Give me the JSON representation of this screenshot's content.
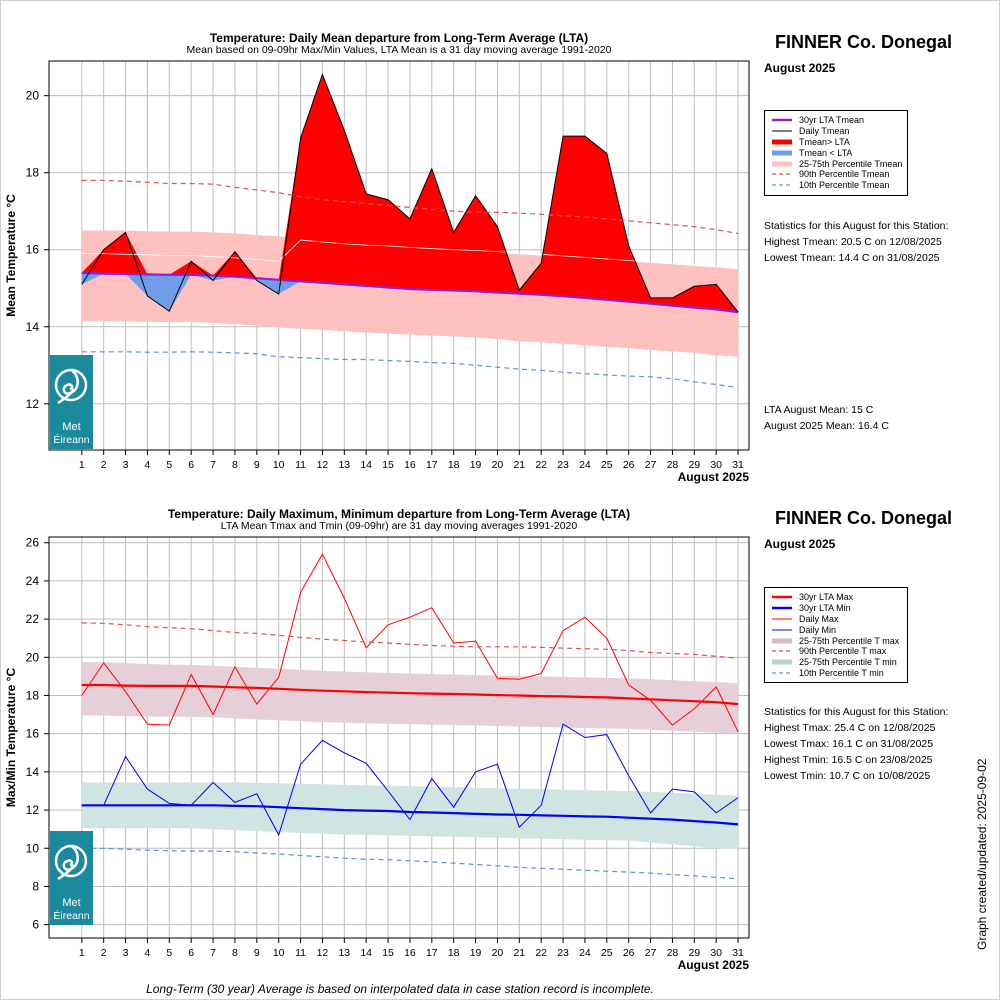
{
  "footnote": "Long-Term (30 year) Average is based on interpolated data in case station record is incomplete.",
  "created_label": "Graph created/updated:  2025-09-02",
  "chart_data": [
    {
      "type": "area",
      "title": "Temperature: Daily Mean departure from Long-Term Average (LTA)",
      "subtitle": "Mean based on 09-09hr Max/Min Values, LTA Mean is a 31 day moving average 1991-2020",
      "station": "FINNER Co. Donegal",
      "month": "August 2025",
      "xlabel": "August 2025",
      "ylabel": "Mean Temperature °C",
      "xlim": [
        -0.5,
        31.5
      ],
      "ylim": [
        10.8,
        20.9
      ],
      "y_ticks": [
        12,
        14,
        16,
        18,
        20
      ],
      "x": [
        1,
        2,
        3,
        4,
        5,
        6,
        7,
        8,
        9,
        10,
        11,
        12,
        13,
        14,
        15,
        16,
        17,
        18,
        19,
        20,
        21,
        22,
        23,
        24,
        25,
        26,
        27,
        28,
        29,
        30,
        31
      ],
      "grid": true,
      "series": [
        {
          "name": "30yr LTA Tmean",
          "color": "#9b1bc9",
          "values": [
            15.4,
            15.38,
            15.37,
            15.36,
            15.35,
            15.35,
            15.33,
            15.3,
            15.26,
            15.22,
            15.18,
            15.14,
            15.1,
            15.06,
            15.02,
            14.98,
            14.96,
            14.94,
            14.92,
            14.89,
            14.86,
            14.83,
            14.79,
            14.75,
            14.7,
            14.65,
            14.6,
            14.55,
            14.5,
            14.45,
            14.38
          ]
        },
        {
          "name": "Daily Tmean",
          "color": "#000000",
          "values": [
            15.1,
            16.0,
            16.45,
            14.8,
            14.4,
            15.7,
            15.2,
            15.95,
            15.2,
            14.85,
            18.9,
            20.55,
            19.1,
            17.45,
            17.3,
            16.8,
            18.1,
            16.45,
            17.4,
            16.6,
            14.95,
            15.65,
            18.95,
            18.95,
            18.5,
            16.1,
            14.75,
            14.75,
            15.05,
            15.1,
            14.38
          ]
        },
        {
          "name": "90th Percentile Tmean",
          "color": "#e05050",
          "values": [
            17.8,
            17.8,
            17.78,
            17.75,
            17.72,
            17.72,
            17.7,
            17.62,
            17.55,
            17.48,
            17.38,
            17.3,
            17.25,
            17.2,
            17.15,
            17.1,
            17.05,
            17.0,
            16.98,
            16.97,
            16.95,
            16.92,
            16.88,
            16.85,
            16.8,
            16.75,
            16.7,
            16.65,
            16.6,
            16.52,
            16.42
          ]
        },
        {
          "name": "10th Percentile Tmean",
          "color": "#5b8fe6",
          "values": [
            13.35,
            13.35,
            13.35,
            13.34,
            13.34,
            13.35,
            13.34,
            13.32,
            13.3,
            13.22,
            13.2,
            13.17,
            13.15,
            13.15,
            13.12,
            13.1,
            13.07,
            13.05,
            13.0,
            12.95,
            12.9,
            12.87,
            12.82,
            12.78,
            12.75,
            12.72,
            12.7,
            12.65,
            12.57,
            12.5,
            12.42
          ]
        }
      ],
      "band": {
        "name": "25-75th Percentile Tmean",
        "color": "#ffc0c0",
        "upper": [
          16.5,
          16.5,
          16.5,
          16.48,
          16.47,
          16.47,
          16.45,
          16.42,
          16.38,
          16.35,
          16.3,
          16.25,
          16.2,
          16.15,
          16.1,
          16.06,
          16.02,
          15.98,
          15.95,
          15.92,
          15.88,
          15.85,
          15.82,
          15.78,
          15.74,
          15.7,
          15.66,
          15.62,
          15.58,
          15.54,
          15.5
        ],
        "lower": [
          14.15,
          14.15,
          14.14,
          14.13,
          14.12,
          14.13,
          14.1,
          14.07,
          14.03,
          13.98,
          13.95,
          13.92,
          13.88,
          13.85,
          13.82,
          13.8,
          13.77,
          13.75,
          13.72,
          13.68,
          13.62,
          13.6,
          13.56,
          13.52,
          13.48,
          13.44,
          13.4,
          13.36,
          13.32,
          13.26,
          13.22
        ]
      },
      "inner_line": {
        "color": "#ffffff",
        "values": [
          15.9,
          15.9,
          15.88,
          15.87,
          15.85,
          15.85,
          15.82,
          15.79,
          15.75,
          15.7,
          16.25,
          16.2,
          16.15,
          16.12,
          16.1,
          16.06,
          16.03,
          16.0,
          15.98,
          15.95,
          15.92,
          15.88,
          15.84,
          15.8,
          15.76,
          15.72,
          15.68,
          15.64,
          15.6,
          15.56,
          15.52
        ]
      },
      "fill_above_color": "#ff0000",
      "fill_below_color": "#6f9de8",
      "legend": [
        {
          "label": "30yr LTA Tmean",
          "kind": "line",
          "color": "#9b1bc9",
          "width": 2.5
        },
        {
          "label": "Daily Tmean",
          "kind": "line",
          "color": "#000000",
          "width": 1
        },
        {
          "label": "Tmean> LTA",
          "kind": "line",
          "color": "#ff0000",
          "width": 5
        },
        {
          "label": "Tmean < LTA",
          "kind": "line",
          "color": "#6f9de8",
          "width": 5
        },
        {
          "label": "25-75th Percentile Tmean",
          "kind": "line",
          "color": "#ffc0c0",
          "width": 5
        },
        {
          "label": "90th Percentile Tmean",
          "kind": "dash",
          "color": "#e05050",
          "width": 1.2
        },
        {
          "label": "10th Percentile Tmean",
          "kind": "dash",
          "color": "#5b8fe6",
          "width": 1.2
        }
      ],
      "stats": [
        "Statistics for this August for this Station:",
        "Highest Tmean: 20.5 C on 12/08/2025",
        "Lowest Tmean: 14.4 C on 31/08/2025"
      ],
      "means": [
        "LTA August Mean: 15 C",
        "August 2025 Mean: 16.4 C"
      ],
      "logo_text": [
        "Met",
        "Éireann"
      ]
    },
    {
      "type": "line",
      "title": "Temperature: Daily Maximum, Minimum departure from Long-Term Average (LTA)",
      "subtitle": "LTA Mean Tmax and Tmin (09-09hr) are 31 day moving averages 1991-2020",
      "station": "FINNER Co. Donegal",
      "month": "August 2025",
      "xlabel": "August 2025",
      "ylabel": "Max/Min Temperature °C",
      "xlim": [
        -0.5,
        31.5
      ],
      "ylim": [
        5.3,
        26.3
      ],
      "y_ticks": [
        6,
        8,
        10,
        12,
        14,
        16,
        18,
        20,
        22,
        24,
        26
      ],
      "x": [
        1,
        2,
        3,
        4,
        5,
        6,
        7,
        8,
        9,
        10,
        11,
        12,
        13,
        14,
        15,
        16,
        17,
        18,
        19,
        20,
        21,
        22,
        23,
        24,
        25,
        26,
        27,
        28,
        29,
        30,
        31
      ],
      "grid": true,
      "series": [
        {
          "name": "30yr LTA Max",
          "color": "#ff0000",
          "values": [
            18.55,
            18.55,
            18.52,
            18.5,
            18.5,
            18.5,
            18.47,
            18.43,
            18.4,
            18.35,
            18.3,
            18.25,
            18.22,
            18.18,
            18.15,
            18.12,
            18.1,
            18.08,
            18.05,
            18.02,
            18.0,
            17.97,
            17.95,
            17.92,
            17.9,
            17.85,
            17.8,
            17.75,
            17.7,
            17.65,
            17.55
          ]
        },
        {
          "name": "30yr LTA Min",
          "color": "#0000ff",
          "values": [
            12.25,
            12.25,
            12.25,
            12.25,
            12.25,
            12.25,
            12.25,
            12.22,
            12.2,
            12.15,
            12.1,
            12.05,
            12.0,
            11.97,
            11.95,
            11.9,
            11.87,
            11.84,
            11.8,
            11.77,
            11.75,
            11.72,
            11.7,
            11.67,
            11.65,
            11.6,
            11.55,
            11.5,
            11.42,
            11.35,
            11.25
          ]
        },
        {
          "name": "Daily Max",
          "color": "#ff0000",
          "values": [
            18.0,
            19.7,
            18.2,
            16.5,
            16.45,
            19.1,
            17.0,
            19.5,
            17.55,
            18.95,
            23.4,
            25.4,
            23.1,
            20.5,
            21.7,
            22.1,
            22.6,
            20.75,
            20.85,
            18.9,
            18.85,
            19.15,
            21.4,
            22.1,
            21.0,
            18.55,
            17.75,
            16.45,
            17.3,
            18.45,
            16.1
          ]
        },
        {
          "name": "Daily Min",
          "color": "#0000ff",
          "values": [
            12.25,
            12.25,
            14.8,
            13.1,
            12.35,
            12.25,
            13.45,
            12.4,
            12.85,
            10.7,
            14.4,
            15.65,
            15.0,
            14.45,
            13.0,
            11.5,
            13.65,
            12.15,
            14.0,
            14.4,
            11.1,
            12.25,
            16.5,
            15.8,
            15.95,
            13.8,
            11.85,
            13.1,
            12.95,
            11.85,
            12.65
          ]
        },
        {
          "name": "90th Percentile T max",
          "color": "#e05050",
          "values": [
            21.8,
            21.78,
            21.7,
            21.6,
            21.55,
            21.5,
            21.4,
            21.3,
            21.25,
            21.15,
            21.05,
            20.95,
            20.88,
            20.8,
            20.75,
            20.68,
            20.62,
            20.58,
            20.55,
            20.55,
            20.55,
            20.52,
            20.48,
            20.45,
            20.42,
            20.35,
            20.25,
            20.2,
            20.15,
            20.05,
            19.95
          ]
        },
        {
          "name": "10th Percentile T min",
          "color": "#5b8fe6",
          "values": [
            10.0,
            10.0,
            9.95,
            9.9,
            9.87,
            9.85,
            9.85,
            9.82,
            9.75,
            9.7,
            9.62,
            9.55,
            9.48,
            9.42,
            9.4,
            9.35,
            9.28,
            9.22,
            9.15,
            9.08,
            9.0,
            8.95,
            8.9,
            8.85,
            8.8,
            8.75,
            8.7,
            8.62,
            8.55,
            8.48,
            8.4
          ]
        }
      ],
      "bands": [
        {
          "name": "25-75th Percentile T max",
          "color": "#e6cfd8",
          "upper": [
            19.75,
            19.75,
            19.7,
            19.65,
            19.62,
            19.6,
            19.55,
            19.5,
            19.45,
            19.4,
            19.35,
            19.3,
            19.25,
            19.22,
            19.18,
            19.15,
            19.12,
            19.1,
            19.07,
            19.05,
            19.02,
            19.0,
            18.97,
            18.95,
            18.92,
            18.9,
            18.85,
            18.8,
            18.75,
            18.7,
            18.65
          ],
          "lower": [
            16.95,
            16.95,
            16.92,
            16.9,
            16.9,
            16.88,
            16.85,
            16.8,
            16.75,
            16.7,
            16.65,
            16.6,
            16.57,
            16.55,
            16.52,
            16.5,
            16.47,
            16.45,
            16.43,
            16.4,
            16.38,
            16.35,
            16.32,
            16.3,
            16.27,
            16.25,
            16.2,
            16.15,
            16.1,
            16.05,
            16.0
          ]
        },
        {
          "name": "25-75th Percentile T min",
          "color": "#d0e4e1",
          "upper": [
            13.45,
            13.45,
            13.45,
            13.45,
            13.45,
            13.45,
            13.45,
            13.45,
            13.42,
            13.4,
            13.37,
            13.35,
            13.32,
            13.3,
            13.28,
            13.25,
            13.22,
            13.2,
            13.17,
            13.15,
            13.12,
            13.1,
            13.07,
            13.05,
            13.02,
            13.0,
            12.95,
            12.9,
            12.85,
            12.8,
            12.75
          ],
          "lower": [
            11.05,
            11.05,
            11.05,
            11.05,
            11.05,
            11.05,
            11.0,
            10.95,
            10.9,
            10.85,
            10.8,
            10.75,
            10.72,
            10.7,
            10.67,
            10.65,
            10.62,
            10.6,
            10.57,
            10.55,
            10.52,
            10.5,
            10.47,
            10.45,
            10.42,
            10.4,
            10.3,
            10.2,
            10.1,
            10.0,
            9.95
          ]
        }
      ],
      "legend": [
        {
          "label": "30yr LTA Max",
          "kind": "line",
          "color": "#ff0000",
          "width": 2.5
        },
        {
          "label": "30yr LTA Min",
          "kind": "line",
          "color": "#0000ff",
          "width": 2.5
        },
        {
          "label": "Daily Max",
          "kind": "line",
          "color": "#ff0000",
          "width": 1
        },
        {
          "label": "Daily Min",
          "kind": "line",
          "color": "#0000ff",
          "width": 1
        },
        {
          "label": "25-75th Percentile T max",
          "kind": "line",
          "color": "#d9b9c5",
          "width": 5
        },
        {
          "label": "90th Percentile T max",
          "kind": "dash",
          "color": "#e05050",
          "width": 1.2
        },
        {
          "label": "25-75th Percentile T min",
          "kind": "line",
          "color": "#b9d3cf",
          "width": 5
        },
        {
          "label": "10th Percentile T min",
          "kind": "dash",
          "color": "#5b8fe6",
          "width": 1.2
        }
      ],
      "stats": [
        "Statistics for this August for this Station:",
        "Highest Tmax: 25.4 C on 12/08/2025",
        "Lowest Tmax: 16.1 C on 31/08/2025",
        "Highest Tmin: 16.5 C on 23/08/2025",
        "Lowest Tmin: 10.7 C on 10/08/2025"
      ],
      "logo_text": [
        "Met",
        "Éireann"
      ]
    }
  ]
}
